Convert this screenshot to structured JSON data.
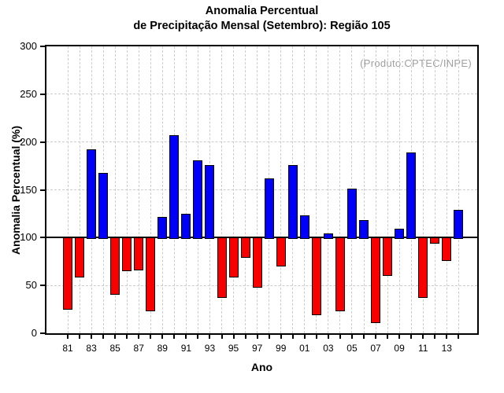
{
  "title": {
    "line1": "Anomalia Percentual",
    "line2": "de Precipitação Mensal (Setembro): Região 105"
  },
  "annotation": "(Produto:CPTEC/INPE)",
  "colors": {
    "bar_above": "#0000f8",
    "bar_below": "#f80000",
    "bar_border": "#000000",
    "grid": "#cccccc",
    "axis": "#000000",
    "annotation_text": "#a0a0a0"
  },
  "chart_data": {
    "type": "bar",
    "title": "Anomalia Percentual de Precipitação Mensal (Setembro): Região 105",
    "xlabel": "Ano",
    "ylabel": "Anomalia Percentual (%)",
    "baseline": 100,
    "ylim": [
      0,
      300
    ],
    "yticks": [
      0,
      50,
      100,
      150,
      200,
      250,
      300
    ],
    "grid": "dashed, vertical line every year, horizontal every 50",
    "x_label_every": 2,
    "years": [
      "81",
      "82",
      "83",
      "84",
      "85",
      "86",
      "87",
      "88",
      "89",
      "90",
      "91",
      "92",
      "93",
      "94",
      "95",
      "96",
      "97",
      "98",
      "99",
      "00",
      "01",
      "02",
      "03",
      "04",
      "05",
      "06",
      "07",
      "08",
      "09",
      "10",
      "11",
      "12",
      "13",
      "14"
    ],
    "values": [
      25,
      58,
      192,
      168,
      40,
      65,
      66,
      23,
      122,
      207,
      125,
      181,
      176,
      37,
      58,
      79,
      48,
      162,
      70,
      176,
      123,
      19,
      104,
      23,
      151,
      118,
      11,
      60,
      109,
      189,
      37,
      94,
      76,
      129
    ],
    "color_rule": "blue when value >= 100, red when value < 100"
  }
}
